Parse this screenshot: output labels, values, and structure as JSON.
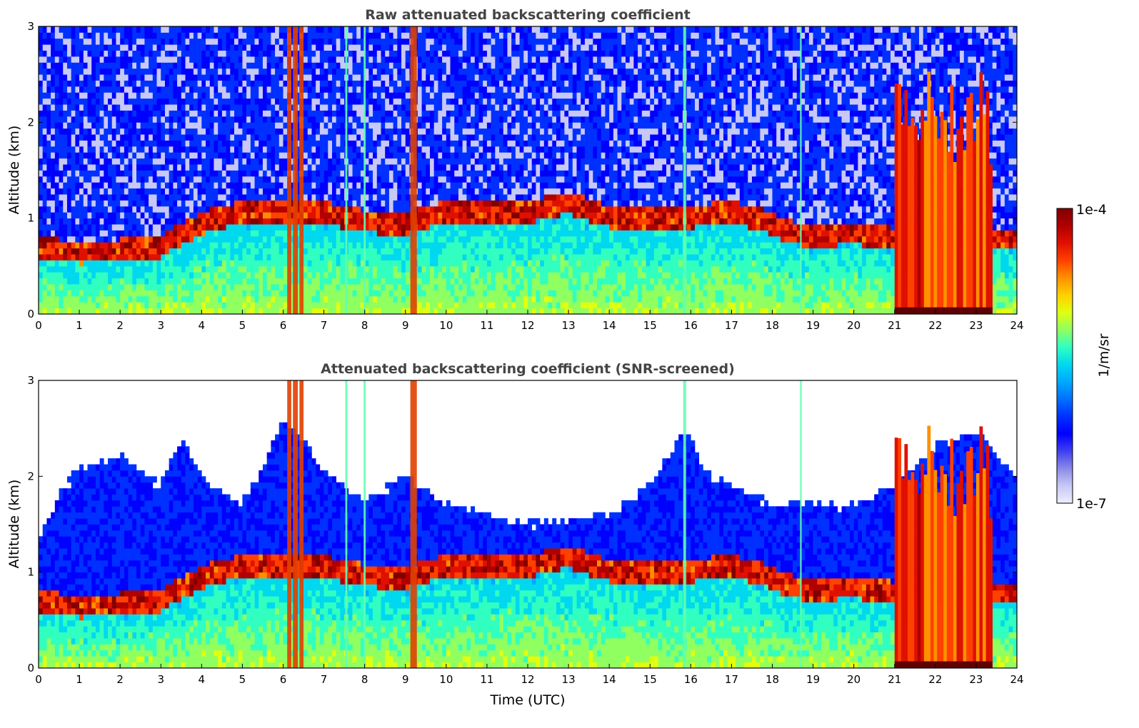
{
  "chart_data": [
    {
      "type": "heatmap",
      "title": "Raw attenuated backscattering coefficient",
      "xlabel": "",
      "ylabel": "Altitude (km)",
      "xlim": [
        0,
        24
      ],
      "ylim": [
        0,
        3
      ],
      "x_ticks": [
        "0",
        "1",
        "2",
        "3",
        "4",
        "5",
        "6",
        "7",
        "8",
        "9",
        "10",
        "11",
        "12",
        "13",
        "14",
        "15",
        "16",
        "17",
        "18",
        "19",
        "20",
        "21",
        "22",
        "23",
        "24"
      ],
      "y_ticks": [
        "0",
        "1",
        "2",
        "3"
      ],
      "grid": false,
      "screened": false,
      "cloud_base": [
        [
          0,
          0.62
        ],
        [
          1,
          0.58
        ],
        [
          2,
          0.6
        ],
        [
          3,
          0.64
        ],
        [
          3.3,
          0.72
        ],
        [
          4,
          0.88
        ],
        [
          4.5,
          0.95
        ],
        [
          5,
          1.0
        ],
        [
          6,
          1.0
        ],
        [
          7,
          1.0
        ],
        [
          8,
          0.9
        ],
        [
          9,
          0.88
        ],
        [
          10,
          1.0
        ],
        [
          11,
          1.0
        ],
        [
          12,
          1.0
        ],
        [
          13,
          1.1
        ],
        [
          14,
          0.95
        ],
        [
          15,
          0.92
        ],
        [
          16,
          0.95
        ],
        [
          17,
          1.0
        ],
        [
          17.9,
          0.9
        ],
        [
          18.5,
          0.78
        ],
        [
          19,
          0.75
        ],
        [
          20,
          0.78
        ],
        [
          21,
          0.72
        ],
        [
          24,
          0.72
        ]
      ],
      "precip_shafts": [
        [
          6.15,
          0.1
        ],
        [
          6.3,
          0.12
        ],
        [
          6.45,
          0.1
        ],
        [
          9.2,
          0.16
        ],
        [
          15.85,
          0.07
        ],
        [
          7.55,
          0.05
        ],
        [
          8.0,
          0.05
        ],
        [
          18.7,
          0.04
        ]
      ],
      "rain_block": [
        21.0,
        23.4
      ]
    },
    {
      "type": "heatmap",
      "title": "Attenuated backscattering coefficient (SNR-screened)",
      "xlabel": "Time (UTC)",
      "ylabel": "Altitude (km)",
      "xlim": [
        0,
        24
      ],
      "ylim": [
        0,
        3
      ],
      "x_ticks": [
        "0",
        "1",
        "2",
        "3",
        "4",
        "5",
        "6",
        "7",
        "8",
        "9",
        "10",
        "11",
        "12",
        "13",
        "14",
        "15",
        "16",
        "17",
        "18",
        "19",
        "20",
        "21",
        "22",
        "23",
        "24"
      ],
      "y_ticks": [
        "0",
        "1",
        "2",
        "3"
      ],
      "grid": false,
      "screened": true,
      "cloud_base": [
        [
          0,
          0.62
        ],
        [
          1,
          0.58
        ],
        [
          2,
          0.6
        ],
        [
          3,
          0.64
        ],
        [
          3.3,
          0.72
        ],
        [
          4,
          0.88
        ],
        [
          4.5,
          0.95
        ],
        [
          5,
          1.0
        ],
        [
          6,
          1.0
        ],
        [
          7,
          1.0
        ],
        [
          8,
          0.9
        ],
        [
          9,
          0.88
        ],
        [
          10,
          1.0
        ],
        [
          11,
          1.0
        ],
        [
          12,
          1.0
        ],
        [
          13,
          1.1
        ],
        [
          14,
          0.95
        ],
        [
          15,
          0.92
        ],
        [
          16,
          0.95
        ],
        [
          17,
          1.0
        ],
        [
          17.9,
          0.9
        ],
        [
          18.5,
          0.78
        ],
        [
          19,
          0.75
        ],
        [
          20,
          0.78
        ],
        [
          21,
          0.72
        ],
        [
          24,
          0.72
        ]
      ],
      "signal_top": [
        [
          0,
          1.3
        ],
        [
          0.5,
          1.8
        ],
        [
          1,
          2.1
        ],
        [
          2,
          2.2
        ],
        [
          3,
          1.9
        ],
        [
          3.5,
          2.4
        ],
        [
          4,
          2.0
        ],
        [
          5,
          1.7
        ],
        [
          6,
          2.6
        ],
        [
          7,
          2.1
        ],
        [
          8,
          1.7
        ],
        [
          9,
          2.0
        ],
        [
          10,
          1.7
        ],
        [
          11,
          1.6
        ],
        [
          12,
          1.5
        ],
        [
          13,
          1.55
        ],
        [
          14,
          1.6
        ],
        [
          15,
          1.9
        ],
        [
          15.8,
          2.5
        ],
        [
          16.5,
          2.0
        ],
        [
          17,
          1.9
        ],
        [
          18,
          1.7
        ],
        [
          19,
          1.7
        ],
        [
          20,
          1.7
        ],
        [
          21,
          1.9
        ],
        [
          22,
          2.3
        ],
        [
          23,
          2.5
        ],
        [
          24,
          2.0
        ]
      ],
      "precip_shafts": [
        [
          6.15,
          0.1
        ],
        [
          6.3,
          0.12
        ],
        [
          6.45,
          0.1
        ],
        [
          9.2,
          0.16
        ],
        [
          15.85,
          0.07
        ],
        [
          7.55,
          0.05
        ],
        [
          8.0,
          0.05
        ],
        [
          18.7,
          0.04
        ]
      ],
      "rain_block": [
        21.0,
        23.4
      ]
    }
  ],
  "colorbar": {
    "label": "1/m/sr",
    "max_label": "1e-4",
    "min_label": "1e-7",
    "colors": [
      "#eeeeff",
      "#c8c8f5",
      "#8a8ae8",
      "#4040f0",
      "#0000ff",
      "#0030ff",
      "#0070ff",
      "#00a8ff",
      "#00d8f0",
      "#30ffc0",
      "#90ff60",
      "#e0ff10",
      "#ffd000",
      "#ff9000",
      "#ff4000",
      "#e01000",
      "#b00000",
      "#800000"
    ]
  }
}
